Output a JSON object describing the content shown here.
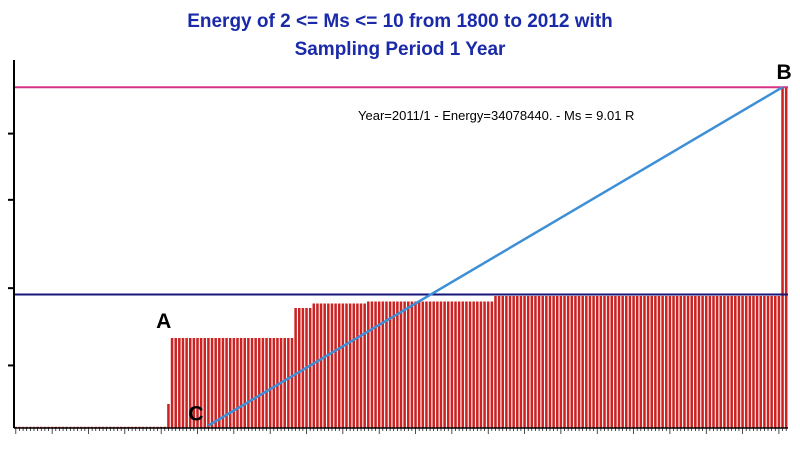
{
  "chart_data": {
    "type": "bar",
    "title_line1": "Energy of  2 <= Ms <= 10  from  1800  to  2012 with",
    "title_line2": "Sampling Period 1 Year",
    "x_range": [
      1800,
      2012
    ],
    "ylim": [
      0,
      36000000
    ],
    "series": [
      {
        "name": "",
        "segments": [
          {
            "from": 1800,
            "to": 1841,
            "value": 120000
          },
          {
            "from": 1842,
            "to": 1842,
            "value": 2400000
          },
          {
            "from": 1843,
            "to": 1876,
            "value": 9000000
          },
          {
            "from": 1877,
            "to": 1881,
            "value": 12000000
          },
          {
            "from": 1882,
            "to": 1896,
            "value": 12450000
          },
          {
            "from": 1897,
            "to": 1931,
            "value": 12650000
          },
          {
            "from": 1932,
            "to": 2010,
            "value": 13200000
          },
          {
            "from": 2011,
            "to": 2012,
            "value": 34078440
          }
        ]
      }
    ],
    "reference_lines": [
      {
        "value": 34078440,
        "color": "#d63384"
      },
      {
        "value": 13350000,
        "color": "#15157a"
      }
    ],
    "trend_line": {
      "from": [
        1853,
        250000
      ],
      "to": [
        2011,
        34078440
      ],
      "color": "#3d8fd6"
    },
    "points": [
      {
        "label": "A",
        "x": 1843,
        "y": 9000000
      },
      {
        "label": "B",
        "x": 2011,
        "y": 34078440
      },
      {
        "label": "C",
        "x": 1853,
        "y": 250000
      }
    ],
    "annotation": "Year=2011/1 - Energy=34078440. - Ms = 9.01 R",
    "colors": {
      "bars": "#cc2222",
      "axis": "#000000",
      "title": "#1a2aa8"
    },
    "grid": false
  }
}
